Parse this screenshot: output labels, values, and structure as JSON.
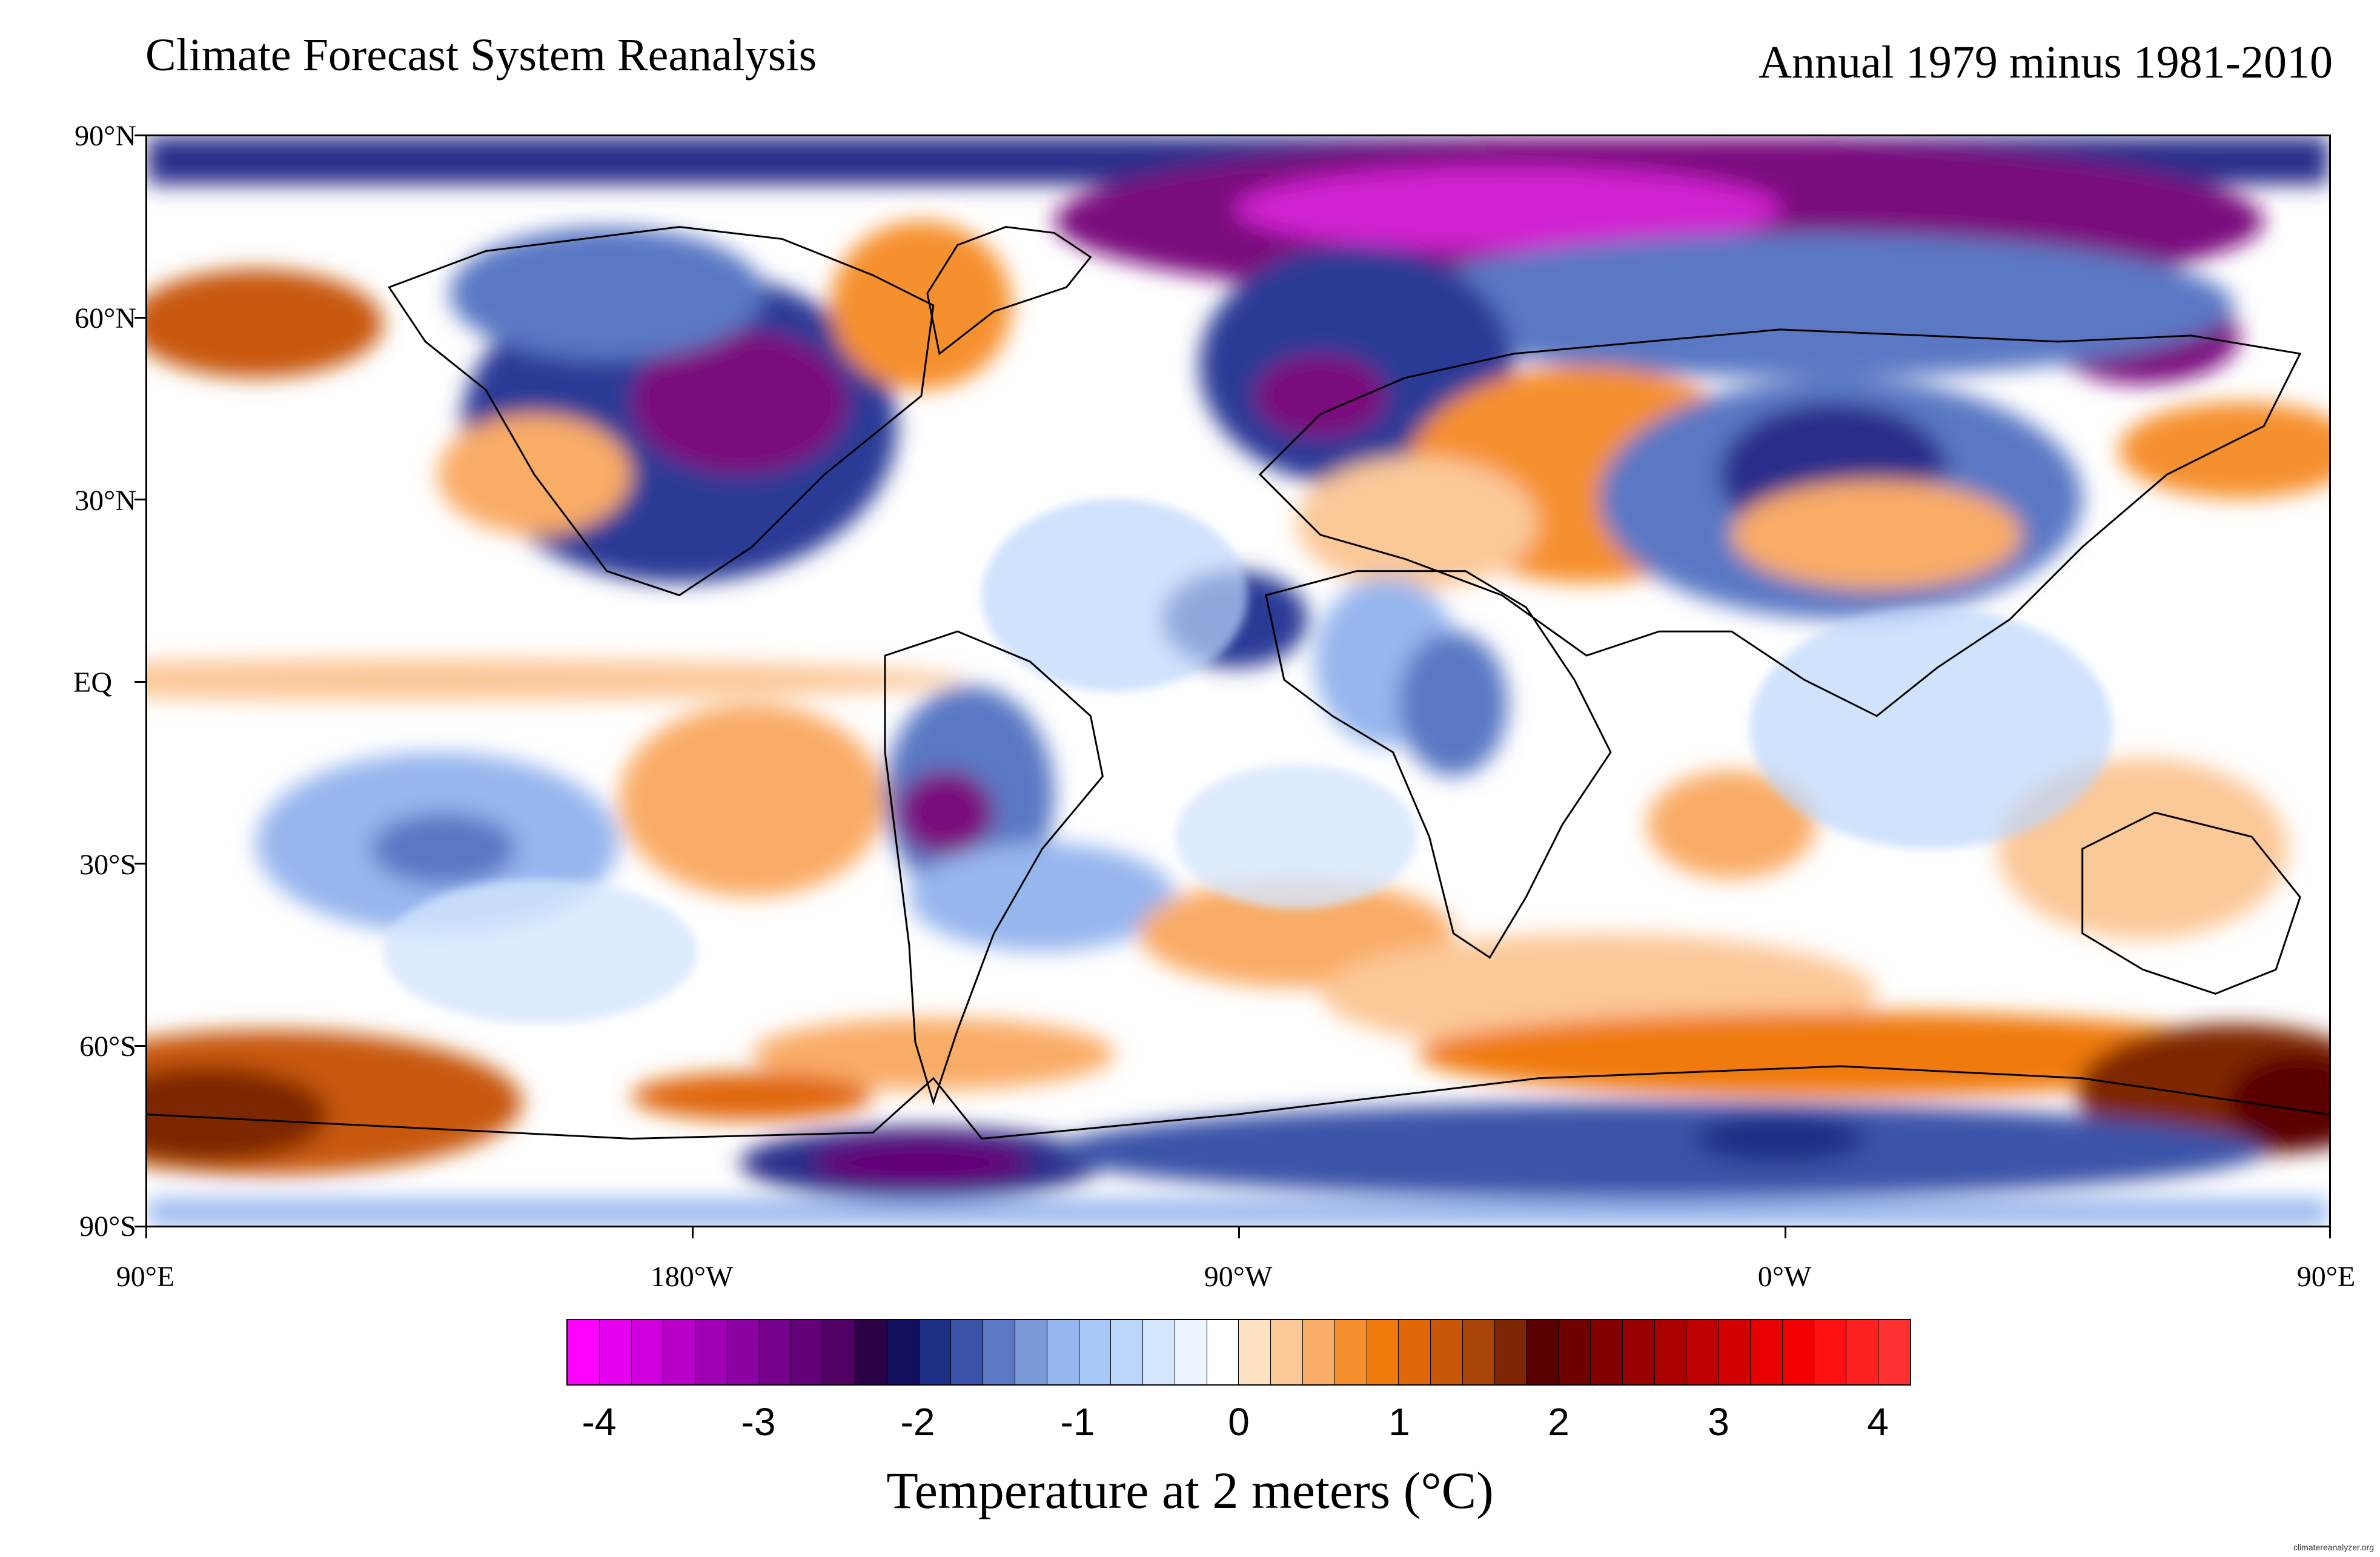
{
  "header": {
    "title_left": "Climate Forecast System Reanalysis",
    "title_right": "Annual 1979 minus 1981-2010"
  },
  "map": {
    "projection": "equirectangular",
    "lon_range": [
      90,
      450
    ],
    "lat_range": [
      -90,
      90
    ],
    "lat_labels": [
      "90°N",
      "60°N",
      "30°N",
      "EQ",
      "30°S",
      "60°S",
      "90°S"
    ],
    "lon_labels": [
      "90°E",
      "180°W",
      "90°W",
      "0°W",
      "90°E"
    ],
    "variable": "Temperature anomaly at 2 meters",
    "colors": {
      "strong_warm": "#7a0000",
      "warm": "#f07c12",
      "light_warm": "#fbc58a",
      "neutral": "#ffffff",
      "light_cool": "#b9dcfb",
      "cool": "#5a8fe0",
      "strong_cool": "#1d2570",
      "extreme_cool": "#8a0a8c"
    }
  },
  "colorbar": {
    "colors": [
      "#ff00ff",
      "#e600f0",
      "#d000dc",
      "#b800c8",
      "#a000b4",
      "#8a00a0",
      "#76008c",
      "#640078",
      "#500064",
      "#2a0046",
      "#10105e",
      "#1e2f86",
      "#3a52a8",
      "#5a78c4",
      "#7a98d8",
      "#96b6ee",
      "#a8c8f8",
      "#bcd6fb",
      "#d4e6fd",
      "#ecf4ff",
      "#ffffff",
      "#fde2c4",
      "#fbc898",
      "#f9ac66",
      "#f6902f",
      "#f07a0c",
      "#e06808",
      "#c85808",
      "#a84406",
      "#7e2604",
      "#5a0000",
      "#6e0000",
      "#820000",
      "#960000",
      "#aa0000",
      "#be0000",
      "#d20000",
      "#e60000",
      "#f50000",
      "#ff1010",
      "#ff2020",
      "#ff3030"
    ],
    "tick_labels": [
      "-4",
      "-3",
      "-2",
      "-1",
      "0",
      "1",
      "2",
      "3",
      "4"
    ],
    "title": "Temperature at 2 meters (°C)"
  },
  "watermark": "climatereanalyzer.org"
}
